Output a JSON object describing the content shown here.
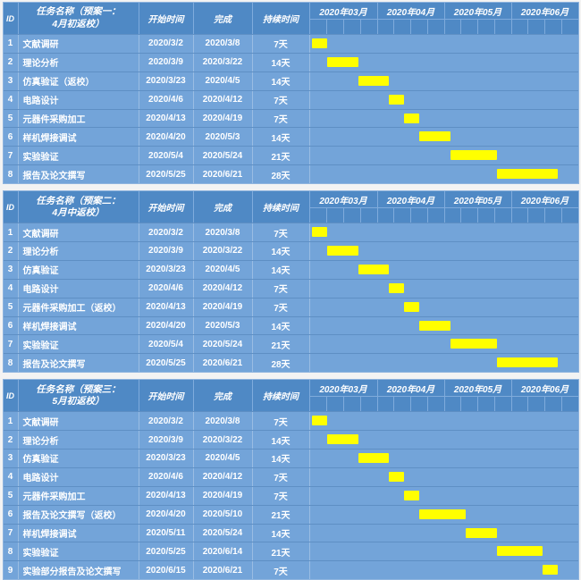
{
  "colors": {
    "header_bg": "#4f89c5",
    "row_bg": "#73a4d9",
    "grid_light": "#7fabdc",
    "row_separator": "#5e8fc4",
    "bar_fill": "#ffff00",
    "text": "#ffffff",
    "page_bg": "#f3f3f3"
  },
  "chart_data": {
    "type": "gantt",
    "months": [
      "2020年03月",
      "2020年04月",
      "2020年05月",
      "2020年06月"
    ],
    "weeks_per_month": 4,
    "axis_start_date": "2020/3/1",
    "axis_total_days": 122,
    "column_headers": {
      "id": "ID",
      "start": "开始时间",
      "finish": "完成",
      "duration": "持续时间"
    },
    "tables": [
      {
        "task_header_line1": "任务名称（预案一：",
        "task_header_line2": "4月初返校）",
        "tasks": [
          {
            "id": "1",
            "name": "文献调研",
            "start": "2020/3/2",
            "finish": "2020/3/8",
            "duration": "7天"
          },
          {
            "id": "2",
            "name": "理论分析",
            "start": "2020/3/9",
            "finish": "2020/3/22",
            "duration": "14天"
          },
          {
            "id": "3",
            "name": "仿真验证（返校）",
            "start": "2020/3/23",
            "finish": "2020/4/5",
            "duration": "14天"
          },
          {
            "id": "4",
            "name": "电路设计",
            "start": "2020/4/6",
            "finish": "2020/4/12",
            "duration": "7天"
          },
          {
            "id": "5",
            "name": "元器件采购加工",
            "start": "2020/4/13",
            "finish": "2020/4/19",
            "duration": "7天"
          },
          {
            "id": "6",
            "name": "样机焊接调试",
            "start": "2020/4/20",
            "finish": "2020/5/3",
            "duration": "14天"
          },
          {
            "id": "7",
            "name": "实验验证",
            "start": "2020/5/4",
            "finish": "2020/5/24",
            "duration": "21天"
          },
          {
            "id": "8",
            "name": "报告及论文撰写",
            "start": "2020/5/25",
            "finish": "2020/6/21",
            "duration": "28天"
          }
        ]
      },
      {
        "task_header_line1": "任务名称（预案二：",
        "task_header_line2": "4月中返校）",
        "tasks": [
          {
            "id": "1",
            "name": "文献调研",
            "start": "2020/3/2",
            "finish": "2020/3/8",
            "duration": "7天"
          },
          {
            "id": "2",
            "name": "理论分析",
            "start": "2020/3/9",
            "finish": "2020/3/22",
            "duration": "14天"
          },
          {
            "id": "3",
            "name": "仿真验证",
            "start": "2020/3/23",
            "finish": "2020/4/5",
            "duration": "14天"
          },
          {
            "id": "4",
            "name": "电路设计",
            "start": "2020/4/6",
            "finish": "2020/4/12",
            "duration": "7天"
          },
          {
            "id": "5",
            "name": "元器件采购加工（返校）",
            "start": "2020/4/13",
            "finish": "2020/4/19",
            "duration": "7天"
          },
          {
            "id": "6",
            "name": "样机焊接调试",
            "start": "2020/4/20",
            "finish": "2020/5/3",
            "duration": "14天"
          },
          {
            "id": "7",
            "name": "实验验证",
            "start": "2020/5/4",
            "finish": "2020/5/24",
            "duration": "21天"
          },
          {
            "id": "8",
            "name": "报告及论文撰写",
            "start": "2020/5/25",
            "finish": "2020/6/21",
            "duration": "28天"
          }
        ]
      },
      {
        "task_header_line1": "任务名称（预案三：",
        "task_header_line2": "5月初返校）",
        "tasks": [
          {
            "id": "1",
            "name": "文献调研",
            "start": "2020/3/2",
            "finish": "2020/3/8",
            "duration": "7天"
          },
          {
            "id": "2",
            "name": "理论分析",
            "start": "2020/3/9",
            "finish": "2020/3/22",
            "duration": "14天"
          },
          {
            "id": "3",
            "name": "仿真验证",
            "start": "2020/3/23",
            "finish": "2020/4/5",
            "duration": "14天"
          },
          {
            "id": "4",
            "name": "电路设计",
            "start": "2020/4/6",
            "finish": "2020/4/12",
            "duration": "7天"
          },
          {
            "id": "5",
            "name": "元器件采购加工",
            "start": "2020/4/13",
            "finish": "2020/4/19",
            "duration": "7天"
          },
          {
            "id": "6",
            "name": "报告及论文撰写（返校）",
            "start": "2020/4/20",
            "finish": "2020/5/10",
            "duration": "21天"
          },
          {
            "id": "7",
            "name": "样机焊接调试",
            "start": "2020/5/11",
            "finish": "2020/5/24",
            "duration": "14天"
          },
          {
            "id": "8",
            "name": "实验验证",
            "start": "2020/5/25",
            "finish": "2020/6/14",
            "duration": "21天"
          },
          {
            "id": "9",
            "name": "实验部分报告及论文撰写",
            "start": "2020/6/15",
            "finish": "2020/6/21",
            "duration": "7天"
          }
        ]
      }
    ]
  }
}
